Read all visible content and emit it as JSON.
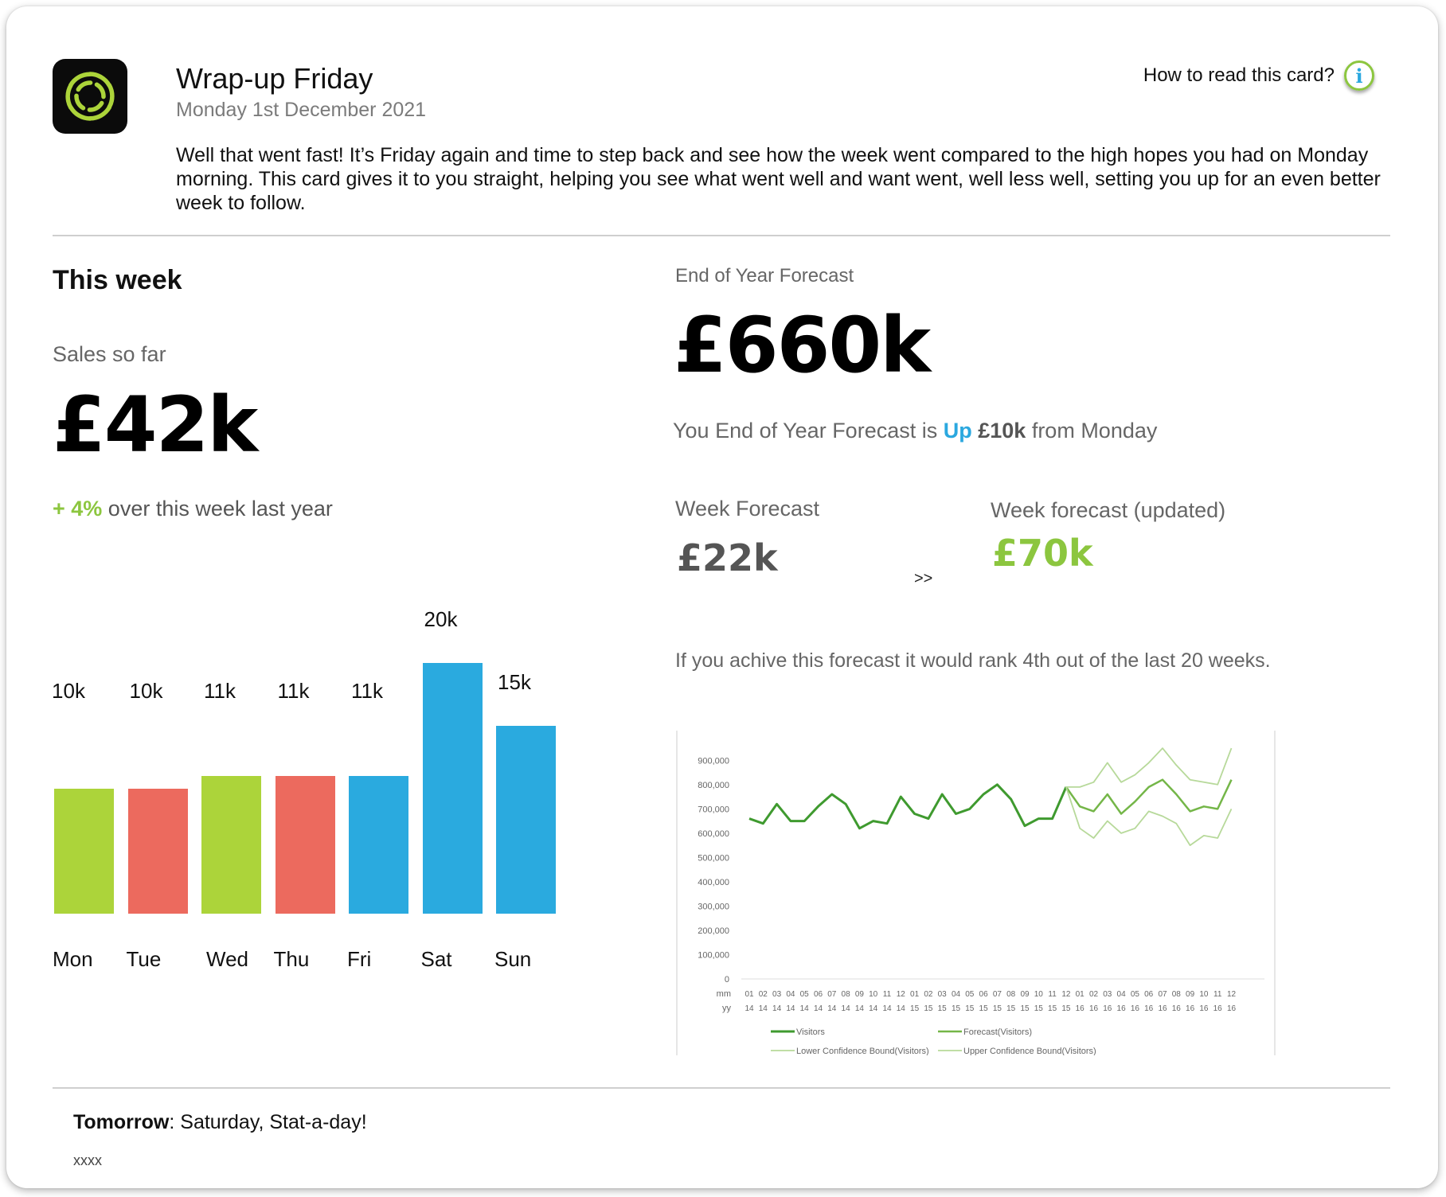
{
  "header": {
    "title": "Wrap-up Friday",
    "date": "Monday 1st December 2021",
    "help_label": "How to read this card?",
    "help_icon": "info-icon",
    "logo_icon": "swirl-logo-icon",
    "intro": "Well that went fast! It’s Friday again and time to step back and see how the week went compared to the high hopes you had on Monday morning. This card gives it to you straight, helping you see what went well and want went, well less well, setting you up for an even better week to follow."
  },
  "this_week": {
    "title": "This week",
    "sales_label": "Sales so far",
    "sales_value": "£42k",
    "growth_value": "+ 4%",
    "growth_text": " over this week last year"
  },
  "forecast": {
    "eoy_label": "End of Year Forecast",
    "eoy_value": "£660k",
    "change_prefix": "You End of Year Forecast is ",
    "change_direction": "Up",
    "change_amount": " £10k",
    "change_suffix": " from Monday",
    "week_label": "Week Forecast",
    "week_value": "£22k",
    "arrow": ">>",
    "updated_label": "Week forecast (updated)",
    "updated_value": "£70k",
    "rank_text": "If you achive this forecast it would rank 4th out of the last 20 weeks."
  },
  "colors": {
    "green": "#acd43a",
    "red": "#ec6a5e",
    "blue": "#2aaadf",
    "accent_green": "#8cc63f",
    "accent_blue": "#2ba8df"
  },
  "chart_data": [
    {
      "type": "bar",
      "categories": [
        "Mon",
        "Tue",
        "Wed",
        "Thu",
        "Fri",
        "Sat",
        "Sun"
      ],
      "values": [
        10,
        10,
        11,
        11,
        11,
        20,
        15
      ],
      "labels": [
        "10k",
        "10k",
        "11k",
        "11k",
        "11k",
        "20k",
        "15k"
      ],
      "colors": [
        "green",
        "red",
        "green",
        "red",
        "blue",
        "blue",
        "blue"
      ],
      "ylim": [
        0,
        20
      ]
    },
    {
      "type": "line",
      "ylim": [
        0,
        1000000
      ],
      "yticks": [
        "0",
        "100,000",
        "200,000",
        "300,000",
        "400,000",
        "500,000",
        "600,000",
        "700,000",
        "800,000",
        "900,000"
      ],
      "x_row_label_top": "mm",
      "x_row_label_bottom": "yy",
      "x_months": [
        "01",
        "02",
        "03",
        "04",
        "05",
        "06",
        "07",
        "08",
        "09",
        "10",
        "11",
        "12",
        "01",
        "02",
        "03",
        "04",
        "05",
        "06",
        "07",
        "08",
        "09",
        "10",
        "11",
        "12",
        "01",
        "02",
        "03",
        "04",
        "05",
        "06",
        "07",
        "08",
        "09",
        "10",
        "11",
        "12"
      ],
      "x_years": [
        "14",
        "14",
        "14",
        "14",
        "14",
        "14",
        "14",
        "14",
        "14",
        "14",
        "14",
        "14",
        "15",
        "15",
        "15",
        "15",
        "15",
        "15",
        "15",
        "15",
        "15",
        "15",
        "15",
        "15",
        "16",
        "16",
        "16",
        "16",
        "16",
        "16",
        "16",
        "16",
        "16",
        "16",
        "16",
        "16"
      ],
      "series": [
        {
          "name": "Visitors",
          "values": [
            660000,
            640000,
            720000,
            650000,
            650000,
            710000,
            760000,
            720000,
            620000,
            650000,
            640000,
            750000,
            680000,
            660000,
            760000,
            680000,
            700000,
            760000,
            800000,
            740000,
            630000,
            660000,
            660000,
            790000
          ]
        },
        {
          "name": "Forecast(Visitors)",
          "start_index": 23,
          "values": [
            790000,
            710000,
            690000,
            760000,
            680000,
            730000,
            790000,
            820000,
            760000,
            690000,
            710000,
            700000,
            820000
          ]
        },
        {
          "name": "Lower Confidence Bound(Visitors)",
          "start_index": 23,
          "values": [
            790000,
            620000,
            580000,
            650000,
            600000,
            620000,
            690000,
            670000,
            640000,
            550000,
            590000,
            580000,
            700000
          ]
        },
        {
          "name": "Upper Confidence Bound(Visitors)",
          "start_index": 23,
          "values": [
            790000,
            790000,
            810000,
            890000,
            810000,
            840000,
            890000,
            950000,
            880000,
            820000,
            810000,
            800000,
            950000
          ]
        }
      ]
    }
  ],
  "footer": {
    "tomorrow_label": "Tomorrow",
    "tomorrow_text": ": Saturday, Stat-a-day!",
    "note": "xxxx"
  }
}
